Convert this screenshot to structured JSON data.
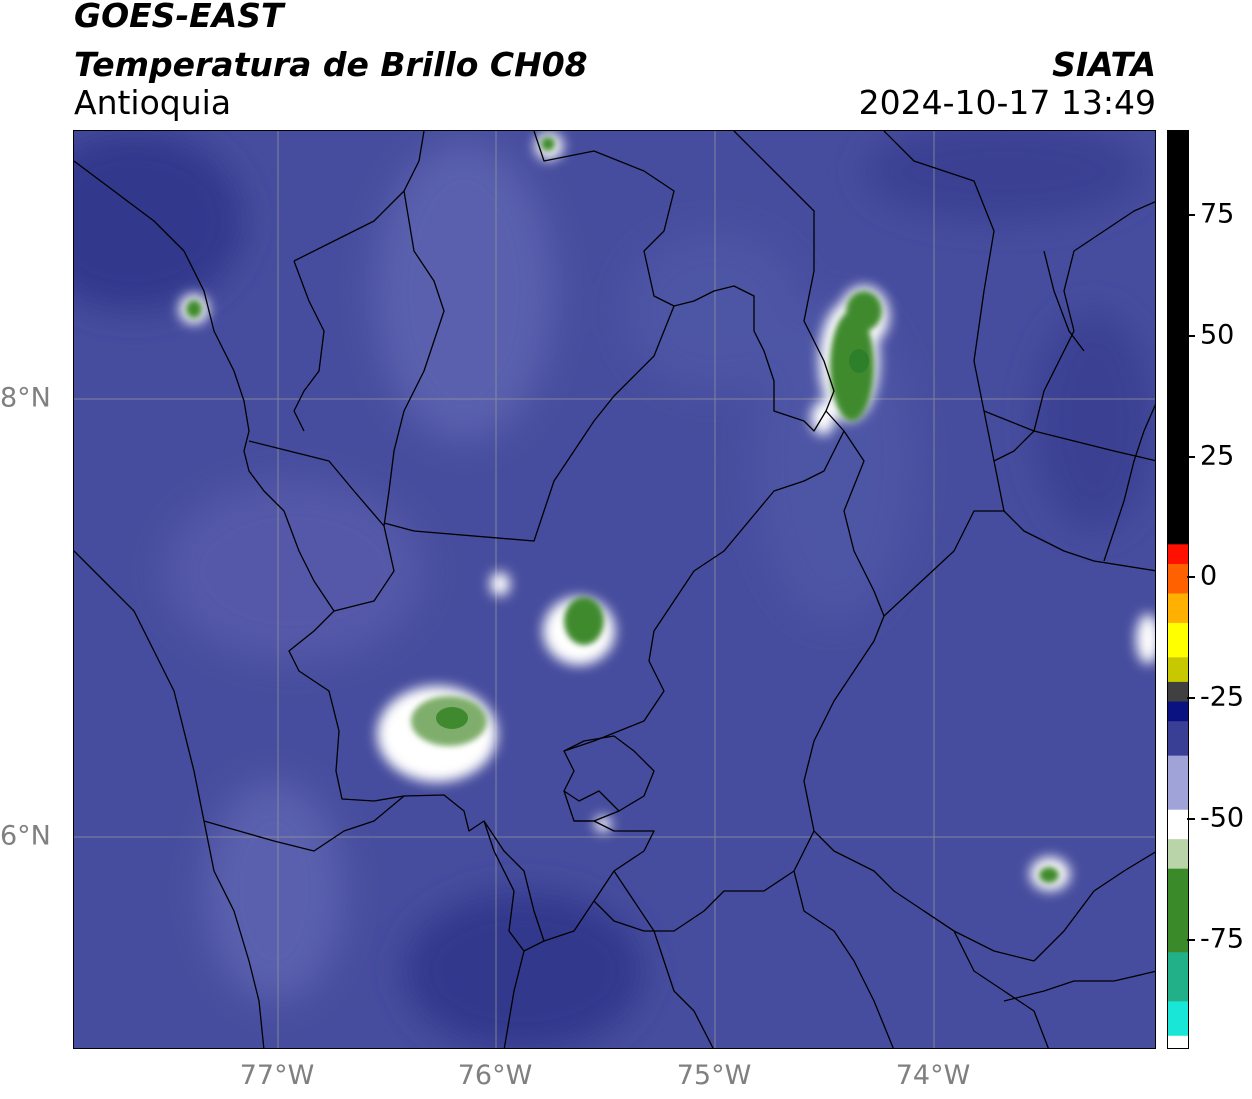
{
  "header": {
    "satellite": "GOES-EAST",
    "product": "Temperatura de Brillo CH08",
    "organization": "SIATA",
    "region": "Antioquia",
    "datetime": "2024-10-17 13:49"
  },
  "map": {
    "lon_ticks": [
      "77°W",
      "76°W",
      "75°W",
      "74°W"
    ],
    "lat_ticks": [
      "8°N",
      "6°N"
    ],
    "background_color": "#474d9e",
    "gridline_color": "#9a9a9a",
    "boundary_color": "#000000",
    "cold_cloud_color": "#3f8a2e"
  },
  "colorbar": {
    "tick_labels": [
      "75",
      "50",
      "25",
      "0",
      "-25",
      "-50",
      "-75"
    ],
    "range": [
      -95,
      92
    ],
    "segments": [
      {
        "from": -95,
        "to": -92,
        "color": "#ffffff"
      },
      {
        "from": -92,
        "to": -85,
        "color": "#19e6d6"
      },
      {
        "from": -85,
        "to": -75,
        "color": "#22b088"
      },
      {
        "from": -75,
        "to": -58,
        "color": "#3a8a2a"
      },
      {
        "from": -58,
        "to": -52,
        "color": "#b8d4a8"
      },
      {
        "from": -52,
        "to": -46,
        "color": "#ffffff"
      },
      {
        "from": -46,
        "to": -35,
        "color": "#9fa3d8"
      },
      {
        "from": -35,
        "to": -28,
        "color": "#3a3f96"
      },
      {
        "from": -28,
        "to": -24,
        "color": "#0a1180"
      },
      {
        "from": -24,
        "to": -20,
        "color": "#404040"
      },
      {
        "from": -20,
        "to": -15,
        "color": "#c8c800"
      },
      {
        "from": -15,
        "to": -8,
        "color": "#ffff00"
      },
      {
        "from": -8,
        "to": -2,
        "color": "#ffb000"
      },
      {
        "from": -2,
        "to": 4,
        "color": "#ff6000"
      },
      {
        "from": 4,
        "to": 8,
        "color": "#ff1000"
      },
      {
        "from": 8,
        "to": 92,
        "color": "#000000"
      }
    ]
  }
}
